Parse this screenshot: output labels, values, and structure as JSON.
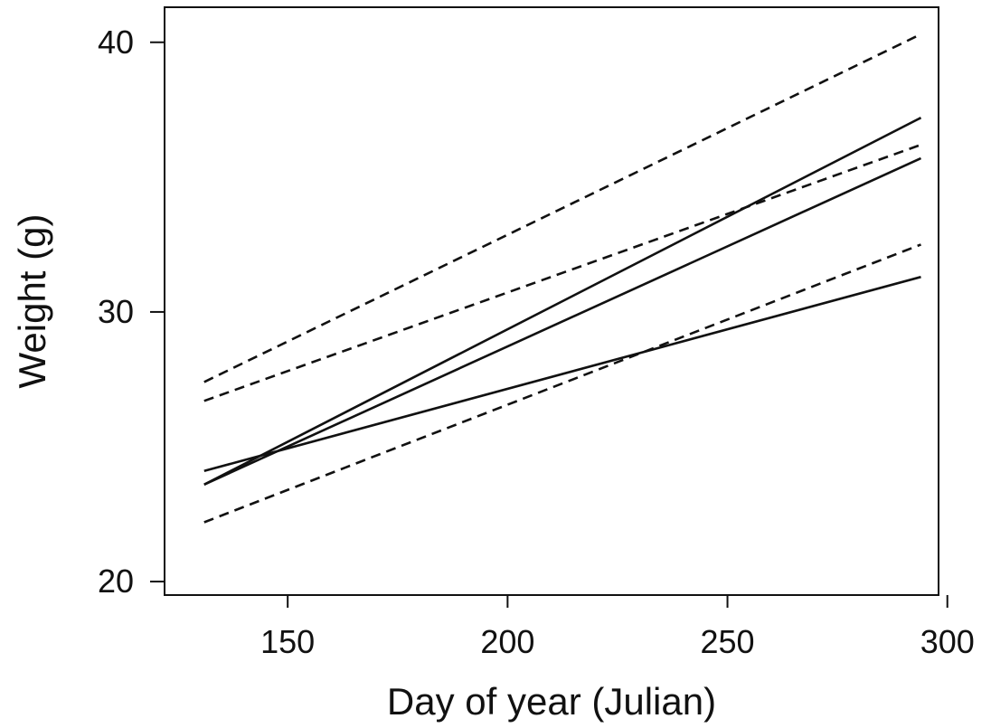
{
  "chart_data": {
    "type": "line",
    "title": "",
    "xlabel": "Day of year (Julian)",
    "ylabel": "Weight (g)",
    "xlim": [
      122,
      298
    ],
    "ylim": [
      19.5,
      41.3
    ],
    "xticks": [
      150,
      200,
      250,
      300
    ],
    "yticks": [
      20,
      30,
      40
    ],
    "xtick_labels": [
      "150",
      "200",
      "250",
      "300"
    ],
    "ytick_labels": [
      "20",
      "30",
      "40"
    ],
    "grid": false,
    "legend": "none",
    "series": [
      {
        "style": "solid",
        "x": [
          131,
          294
        ],
        "y": [
          23.6,
          37.2
        ]
      },
      {
        "style": "solid",
        "x": [
          131,
          294
        ],
        "y": [
          23.6,
          35.7
        ]
      },
      {
        "style": "solid",
        "x": [
          131,
          294
        ],
        "y": [
          24.1,
          31.3
        ]
      },
      {
        "style": "dashed",
        "x": [
          131,
          294
        ],
        "y": [
          27.4,
          40.3
        ]
      },
      {
        "style": "dashed",
        "x": [
          131,
          294
        ],
        "y": [
          26.7,
          36.2
        ]
      },
      {
        "style": "dashed",
        "x": [
          131,
          294
        ],
        "y": [
          22.2,
          32.5
        ]
      }
    ],
    "colors": {
      "line": "#111111",
      "axis": "#111111",
      "background": "#ffffff"
    }
  }
}
